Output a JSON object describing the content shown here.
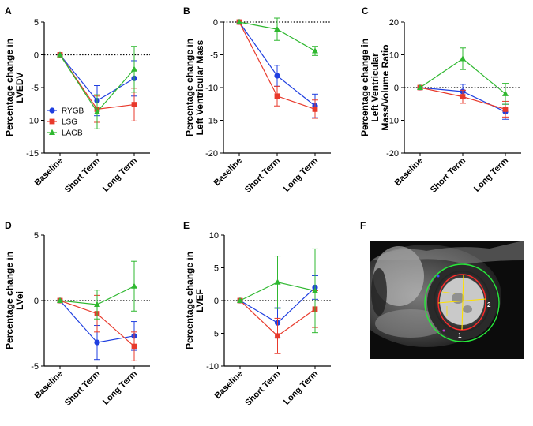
{
  "colors": {
    "RYGB": "#1f3fe0",
    "LSG": "#e8392b",
    "LAGB": "#2fb830"
  },
  "chart_data": [
    {
      "panel": "A",
      "type": "line",
      "ylabel_lines": [
        "Percentage change in",
        "LVEDV"
      ],
      "categories": [
        "Baseline",
        "Short Term",
        "Long Term"
      ],
      "ylim": [
        -15,
        5
      ],
      "yticks": [
        5,
        0,
        -5,
        -10,
        -15
      ],
      "legend": [
        "RYGB",
        "LSG",
        "LAGB"
      ],
      "series": [
        {
          "name": "RYGB",
          "values": [
            0,
            -7.0,
            -3.6
          ],
          "err": [
            0,
            2.3,
            2.7
          ]
        },
        {
          "name": "LSG",
          "values": [
            0,
            -8.3,
            -7.6
          ],
          "err": [
            0,
            2.0,
            2.5
          ]
        },
        {
          "name": "LAGB",
          "values": [
            0,
            -8.7,
            -2.2
          ],
          "err": [
            0,
            2.6,
            3.5
          ]
        }
      ]
    },
    {
      "panel": "B",
      "type": "line",
      "ylabel_lines": [
        "Percentage change in",
        "Left Ventricular Mass"
      ],
      "categories": [
        "Baseline",
        "Short Term",
        "Long Term"
      ],
      "ylim": [
        -20,
        0
      ],
      "yticks": [
        0,
        -5,
        -10,
        -15,
        -20
      ],
      "series": [
        {
          "name": "RYGB",
          "values": [
            0,
            -8.2,
            -12.8
          ],
          "err": [
            0,
            1.6,
            1.8
          ]
        },
        {
          "name": "LSG",
          "values": [
            0,
            -11.3,
            -13.3
          ],
          "err": [
            0,
            1.5,
            1.4
          ]
        },
        {
          "name": "LAGB",
          "values": [
            0,
            -1.1,
            -4.4
          ],
          "err": [
            0,
            1.7,
            0.7
          ]
        }
      ]
    },
    {
      "panel": "C",
      "type": "line",
      "ylabel_lines": [
        "Percentage change in",
        "Left Ventricular",
        "Mass/Volume Ratio"
      ],
      "categories": [
        "Baseline",
        "Short Term",
        "Long Term"
      ],
      "ylim": [
        -20,
        20
      ],
      "yticks": [
        20,
        10,
        0,
        -10,
        -20
      ],
      "series": [
        {
          "name": "RYGB",
          "values": [
            0,
            -1.2,
            -7.4
          ],
          "err": [
            0,
            2.2,
            2.3
          ]
        },
        {
          "name": "LSG",
          "values": [
            0,
            -2.8,
            -6.6
          ],
          "err": [
            0,
            2.0,
            2.4
          ]
        },
        {
          "name": "LAGB",
          "values": [
            0,
            8.8,
            -1.9
          ],
          "err": [
            0,
            3.3,
            3.2
          ]
        }
      ]
    },
    {
      "panel": "D",
      "type": "line",
      "ylabel_lines": [
        "Percentage change in",
        "LVei"
      ],
      "categories": [
        "Baseline",
        "Short Term",
        "Long Term"
      ],
      "ylim": [
        -5,
        5
      ],
      "yticks": [
        5,
        0,
        -5
      ],
      "series": [
        {
          "name": "RYGB",
          "values": [
            0,
            -3.2,
            -2.7
          ],
          "err": [
            0,
            1.3,
            1.1
          ]
        },
        {
          "name": "LSG",
          "values": [
            0,
            -1.0,
            -3.5
          ],
          "err": [
            0,
            1.4,
            1.1
          ]
        },
        {
          "name": "LAGB",
          "values": [
            0,
            -0.3,
            1.1
          ],
          "err": [
            0,
            1.1,
            1.9
          ]
        }
      ]
    },
    {
      "panel": "E",
      "type": "line",
      "ylabel_lines": [
        "Percentage change in",
        "LVEF"
      ],
      "categories": [
        "Baseline",
        "Short Term",
        "Long Term"
      ],
      "ylim": [
        -10,
        10
      ],
      "yticks": [
        10,
        5,
        0,
        -5,
        -10
      ],
      "series": [
        {
          "name": "RYGB",
          "values": [
            0,
            -3.4,
            2.0
          ],
          "err": [
            0,
            2.3,
            1.8
          ]
        },
        {
          "name": "LSG",
          "values": [
            0,
            -5.4,
            -1.3
          ],
          "err": [
            0,
            2.7,
            2.8
          ]
        },
        {
          "name": "LAGB",
          "values": [
            0,
            2.8,
            1.5
          ],
          "err": [
            0,
            4.0,
            6.4
          ]
        }
      ]
    }
  ],
  "image_panel": {
    "panel": "F",
    "markers": [
      "1",
      "2"
    ]
  }
}
